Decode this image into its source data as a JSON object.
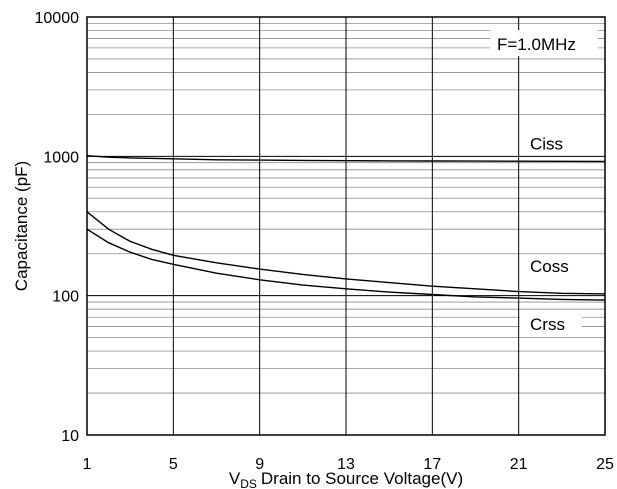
{
  "chart_data": {
    "type": "line",
    "title": "",
    "xlabel": "Drain to Source Voltage(V)",
    "xlabel_symbol": "V",
    "xlabel_subscript": "DS",
    "ylabel": "Capacitance (pF)",
    "annotation": "F=1.0MHz",
    "xscale": "linear",
    "yscale": "log",
    "xlim": [
      1,
      25
    ],
    "ylim": [
      10,
      10000
    ],
    "x_ticks": [
      1,
      5,
      9,
      13,
      17,
      21,
      25
    ],
    "y_ticks": [
      10,
      100,
      1000,
      10000
    ],
    "grid": true,
    "series": [
      {
        "name": "Ciss",
        "x": [
          1,
          2,
          3,
          5,
          7,
          9,
          11,
          13,
          15,
          17,
          19,
          21,
          23,
          25
        ],
        "y": [
          1010,
          985,
          975,
          960,
          945,
          940,
          935,
          930,
          928,
          926,
          924,
          922,
          921,
          920
        ]
      },
      {
        "name": "Coss",
        "x": [
          1,
          2,
          3,
          4,
          5,
          7,
          9,
          11,
          13,
          15,
          17,
          19,
          21,
          23,
          25
        ],
        "y": [
          400,
          300,
          245,
          215,
          195,
          172,
          155,
          142,
          132,
          124,
          117,
          112,
          107,
          104,
          103
        ]
      },
      {
        "name": "Crss",
        "x": [
          1,
          2,
          3,
          4,
          5,
          7,
          9,
          11,
          13,
          15,
          17,
          19,
          21,
          23,
          25
        ],
        "y": [
          300,
          240,
          205,
          182,
          168,
          145,
          130,
          119,
          112,
          106,
          102,
          98,
          96,
          94,
          93
        ]
      }
    ]
  }
}
